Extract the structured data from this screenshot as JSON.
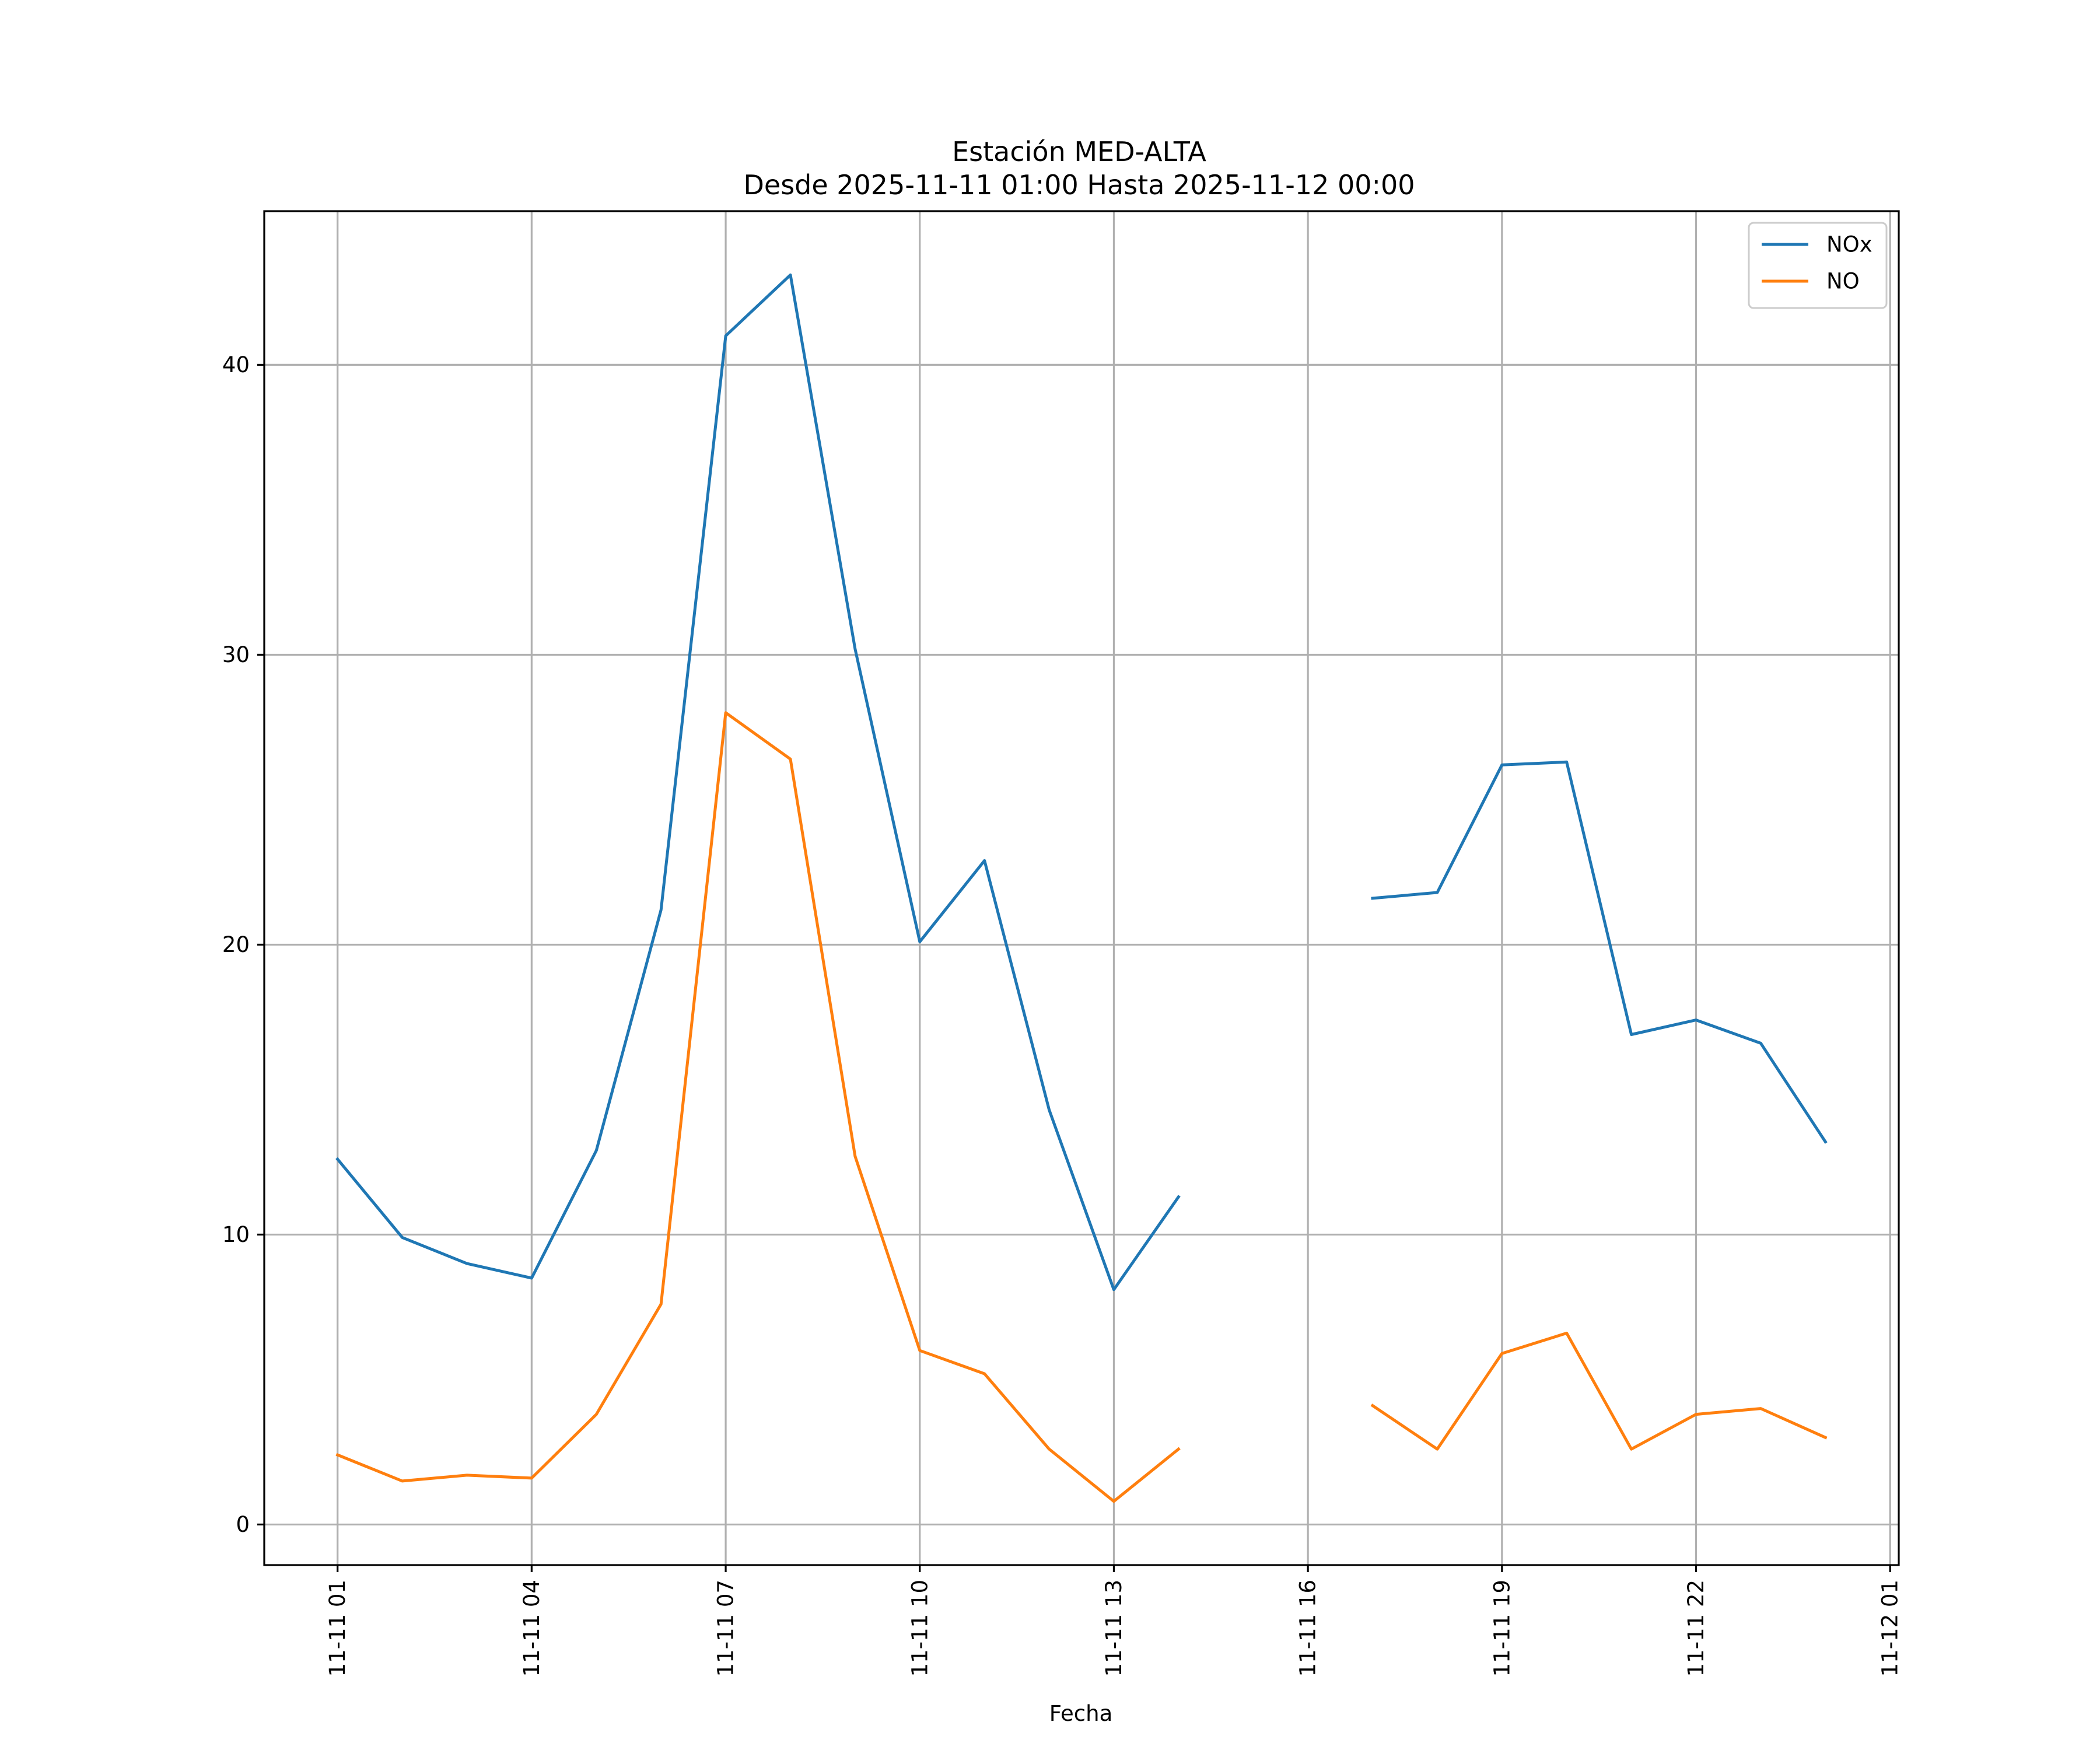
{
  "chart_data": {
    "type": "line",
    "title": "Estación MED-ALTA",
    "subtitle": "Desde 2025-11-11 01:00 Hasta 2025-11-12 00:00",
    "xlabel": "Fecha",
    "ylabel": "",
    "x": [
      "2025-11-11 01:00",
      "2025-11-11 02:00",
      "2025-11-11 03:00",
      "2025-11-11 04:00",
      "2025-11-11 05:00",
      "2025-11-11 06:00",
      "2025-11-11 07:00",
      "2025-11-11 08:00",
      "2025-11-11 09:00",
      "2025-11-11 10:00",
      "2025-11-11 11:00",
      "2025-11-11 12:00",
      "2025-11-11 13:00",
      "2025-11-11 14:00",
      "2025-11-11 15:00",
      "2025-11-11 16:00",
      "2025-11-11 17:00",
      "2025-11-11 18:00",
      "2025-11-11 19:00",
      "2025-11-11 20:00",
      "2025-11-11 21:00",
      "2025-11-11 22:00",
      "2025-11-11 23:00",
      "2025-11-12 00:00"
    ],
    "x_ticks": [
      "11-11 01",
      "11-11 04",
      "11-11 07",
      "11-11 10",
      "11-11 13",
      "11-11 16",
      "11-11 19",
      "11-11 22",
      "11-12 01"
    ],
    "xlim": [
      "2025-11-10 23:52",
      "2025-11-12 01:08"
    ],
    "y_ticks": [
      0,
      10,
      20,
      30,
      40
    ],
    "ylim": [
      -1.4,
      45.3
    ],
    "grid": true,
    "legend": "top-right",
    "series": [
      {
        "name": "NOx",
        "color": "#1f77b4",
        "values": [
          12.6,
          9.9,
          9.0,
          8.5,
          12.9,
          21.2,
          41.0,
          43.1,
          30.2,
          20.1,
          22.9,
          14.3,
          8.1,
          11.3,
          null,
          null,
          21.6,
          21.8,
          26.2,
          26.3,
          16.9,
          17.4,
          16.6,
          13.2
        ]
      },
      {
        "name": "NO",
        "color": "#ff7f0e",
        "values": [
          2.4,
          1.5,
          1.7,
          1.6,
          3.8,
          7.6,
          28.0,
          26.4,
          12.7,
          6.0,
          5.2,
          2.6,
          0.8,
          2.6,
          null,
          null,
          4.1,
          2.6,
          5.9,
          6.6,
          2.6,
          3.8,
          4.0,
          3.0
        ]
      }
    ]
  }
}
